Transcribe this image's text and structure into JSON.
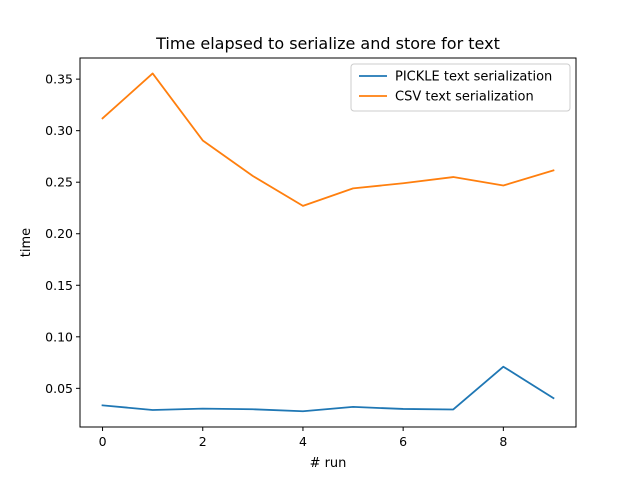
{
  "chart_data": {
    "type": "line",
    "title": "Time elapsed to serialize and store for text",
    "xlabel": "# run",
    "ylabel": "time",
    "x": [
      0,
      1,
      2,
      3,
      4,
      5,
      6,
      7,
      8,
      9
    ],
    "xlim": [
      -0.45,
      9.45
    ],
    "ylim": [
      0.0125,
      0.3705
    ],
    "xticks": [
      0,
      2,
      4,
      6,
      8
    ],
    "xtick_labels": [
      "0",
      "2",
      "4",
      "6",
      "8"
    ],
    "yticks": [
      0.05,
      0.1,
      0.15,
      0.2,
      0.25,
      0.3,
      0.35
    ],
    "ytick_labels": [
      "0.05",
      "0.10",
      "0.15",
      "0.20",
      "0.25",
      "0.30",
      "0.35"
    ],
    "grid": false,
    "legend_position": "top-right",
    "series": [
      {
        "name": "PICKLE text serialization",
        "color": "#1f77b4",
        "values": [
          0.0335,
          0.029,
          0.0303,
          0.0297,
          0.0278,
          0.032,
          0.03,
          0.0295,
          0.071,
          0.0405
        ]
      },
      {
        "name": "CSV text serialization",
        "color": "#ff7f0e",
        "values": [
          0.312,
          0.3555,
          0.2905,
          0.256,
          0.227,
          0.244,
          0.249,
          0.255,
          0.2468,
          0.2615
        ]
      }
    ]
  }
}
